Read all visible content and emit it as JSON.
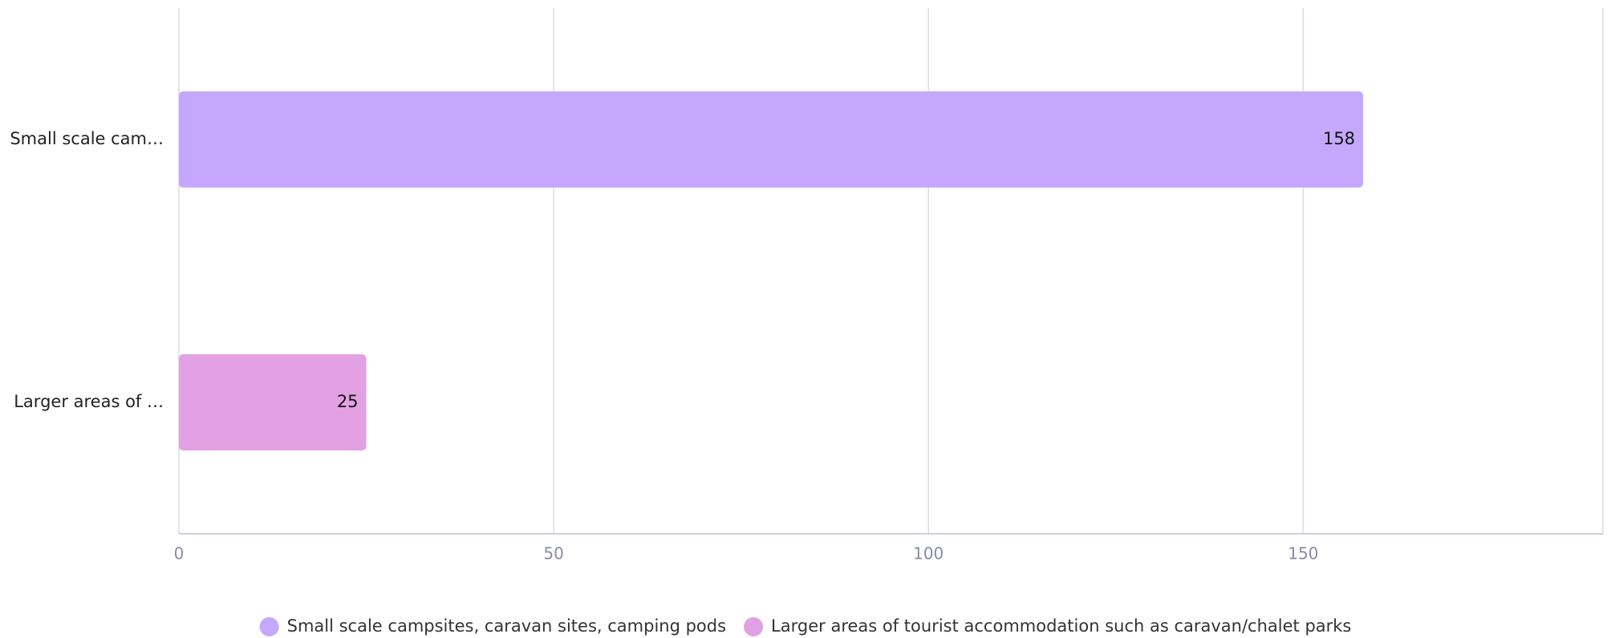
{
  "chart_data": {
    "type": "bar",
    "orientation": "horizontal",
    "categories": [
      "Small scale cam…",
      "Larger areas of …"
    ],
    "series": [
      {
        "name": "Small scale campsites, caravan sites, camping pods",
        "color": "#c5a8fd",
        "values": [
          158,
          null
        ]
      },
      {
        "name": "Larger areas of tourist accommodation such as caravan/chalet parks",
        "color": "#e2a1e3",
        "values": [
          null,
          25
        ]
      }
    ],
    "xlim": [
      0,
      190
    ],
    "xticks": [
      0,
      50,
      100,
      150
    ],
    "grid": true,
    "legend": "bottom"
  }
}
